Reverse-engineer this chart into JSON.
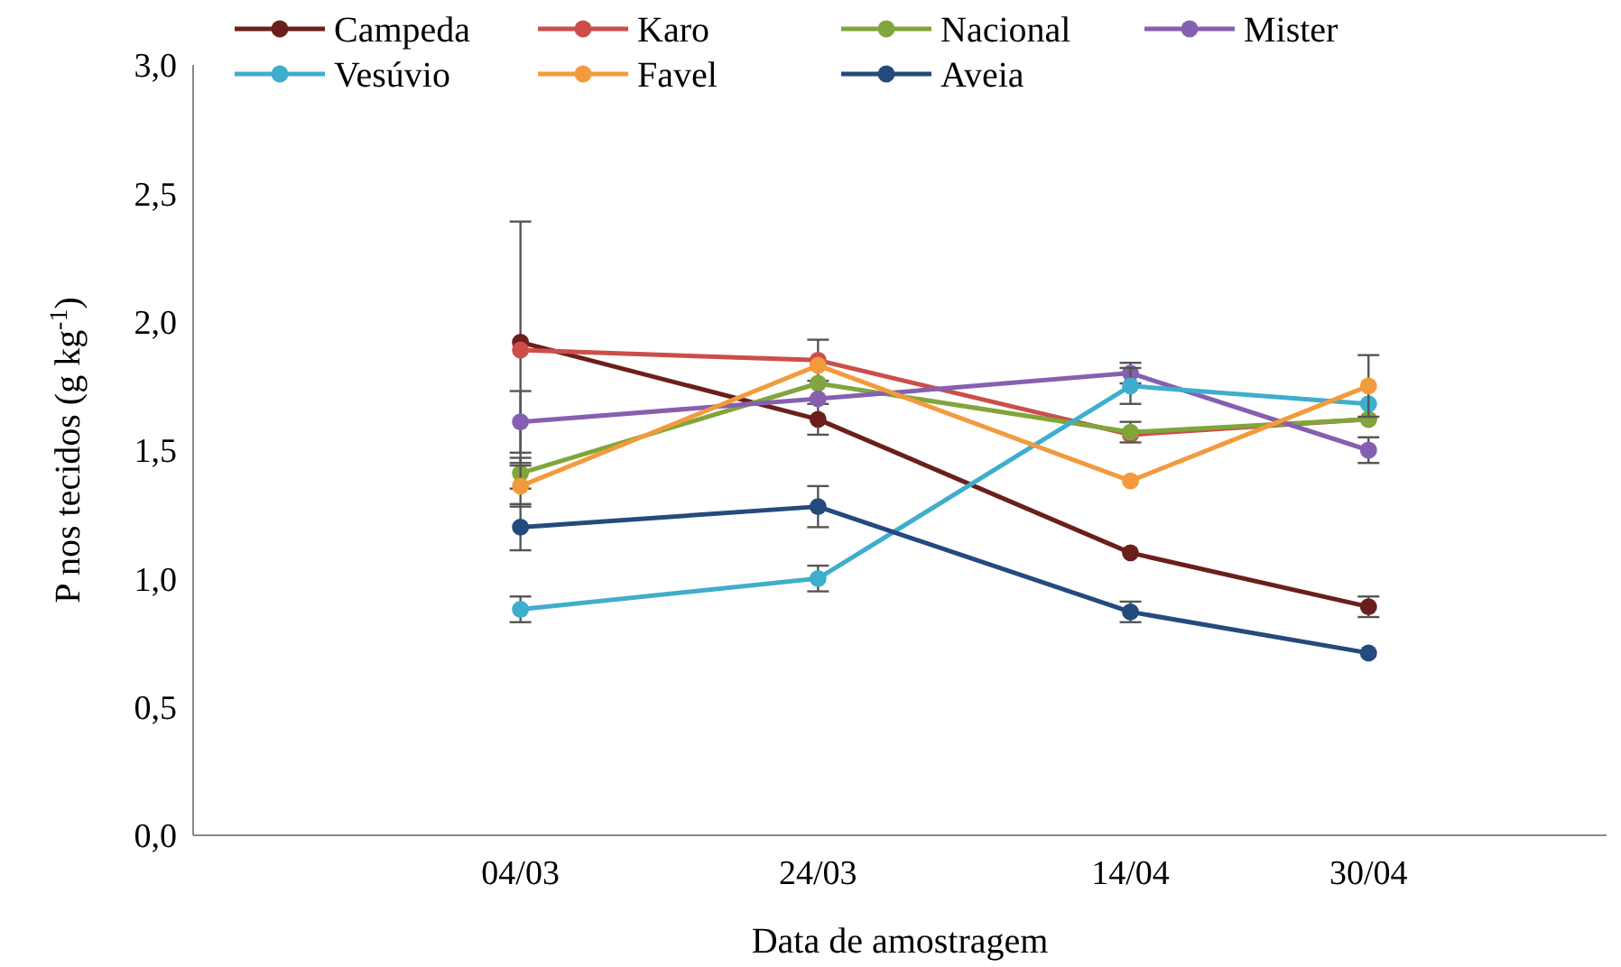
{
  "chart_data": {
    "type": "line",
    "xlabel": "Data de amostragem",
    "ylabel": "P nos tecidos (g kg$^{-1}$)",
    "x": [
      "--03-04",
      "--03-24",
      "--04-14",
      "--04-30"
    ],
    "xlim": [
      "--02-10",
      "--05-16"
    ],
    "xticks": [
      {
        "value": "--03-04",
        "label": "04/03"
      },
      {
        "value": "--03-24",
        "label": "24/03"
      },
      {
        "value": "--04-14",
        "label": "14/04"
      },
      {
        "value": "--04-30",
        "label": "30/04"
      }
    ],
    "ylim": [
      0,
      3
    ],
    "yticks": [
      {
        "value": 0,
        "label": "0,0"
      },
      {
        "value": 0.5,
        "label": "0,5"
      },
      {
        "value": 1,
        "label": "1,0"
      },
      {
        "value": 1.5,
        "label": "1,5"
      },
      {
        "value": 2,
        "label": "2,0"
      },
      {
        "value": 2.5,
        "label": "2,5"
      },
      {
        "value": 3,
        "label": "3,0"
      }
    ],
    "grid": false,
    "legend": "top",
    "marker": "circle",
    "line_style": "solid",
    "series": [
      {
        "name": "Campeda",
        "color": "#6b1f1c",
        "values": [
          1.92,
          1.62,
          1.1,
          0.89
        ],
        "errors": [
          0.47,
          0.06,
          null,
          0.04
        ]
      },
      {
        "name": "Karo",
        "color": "#cc4e4a",
        "values": [
          1.89,
          1.85,
          1.56,
          1.62
        ],
        "errors": [
          null,
          0.08,
          null,
          null
        ]
      },
      {
        "name": "Nacional",
        "color": "#80a53c",
        "values": [
          1.41,
          1.76,
          1.57,
          1.62
        ],
        "errors": [
          0.06,
          null,
          0.04,
          null
        ]
      },
      {
        "name": "Mister",
        "color": "#8660b0",
        "values": [
          1.61,
          1.7,
          1.8,
          1.5
        ],
        "errors": [
          0.12,
          null,
          0.04,
          0.05
        ]
      },
      {
        "name": "Vesúvio",
        "color": "#3eaecc",
        "values": [
          0.88,
          1.0,
          1.75,
          1.68
        ],
        "errors": [
          0.05,
          0.05,
          0.07,
          null
        ]
      },
      {
        "name": "Favel",
        "color": "#f39a3c",
        "values": [
          1.36,
          1.83,
          1.38,
          1.75
        ],
        "errors": [
          0.08,
          null,
          null,
          0.12
        ]
      },
      {
        "name": "Aveia",
        "color": "#244a7e",
        "values": [
          1.2,
          1.28,
          0.87,
          0.71
        ],
        "errors": [
          0.09,
          0.08,
          0.04,
          null
        ]
      }
    ]
  }
}
